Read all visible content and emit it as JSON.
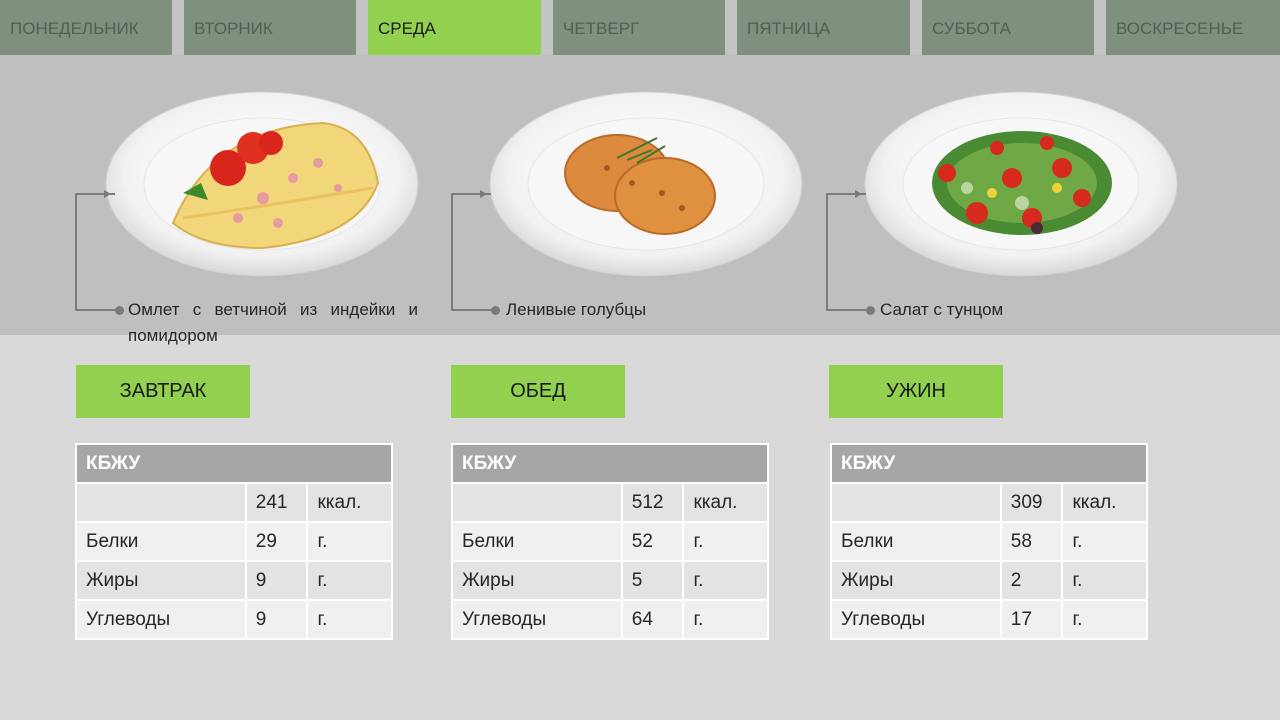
{
  "tabs": [
    {
      "label": "ПОНЕДЕЛЬНИК",
      "active": false
    },
    {
      "label": "ВТОРНИК",
      "active": false
    },
    {
      "label": "СРЕДА",
      "active": true
    },
    {
      "label": "ЧЕТВЕРГ",
      "active": false
    },
    {
      "label": "ПЯТНИЦА",
      "active": false
    },
    {
      "label": "СУББОТА",
      "active": false
    },
    {
      "label": "ВОСКРЕСЕНЬЕ",
      "active": false
    }
  ],
  "meals": [
    {
      "dish": "Омлет с ветчиной из индейки и",
      "dish_line2": "помидором",
      "label": "ЗАВТРАК",
      "table": {
        "header": "КБЖУ",
        "kcal": "241",
        "kcal_unit": "ккал.",
        "rows": [
          {
            "name": "Белки",
            "value": "29",
            "unit": "г."
          },
          {
            "name": "Жиры",
            "value": "9",
            "unit": "г."
          },
          {
            "name": "Углеводы",
            "value": "9",
            "unit": "г."
          }
        ]
      }
    },
    {
      "dish": "Ленивые голубцы",
      "dish_line2": "",
      "label": "ОБЕД",
      "table": {
        "header": "КБЖУ",
        "kcal": "512",
        "kcal_unit": "ккал.",
        "rows": [
          {
            "name": "Белки",
            "value": "52",
            "unit": "г."
          },
          {
            "name": "Жиры",
            "value": "5",
            "unit": "г."
          },
          {
            "name": "Углеводы",
            "value": "64",
            "unit": "г."
          }
        ]
      }
    },
    {
      "dish": "Салат с тунцом",
      "dish_line2": "",
      "label": "УЖИН",
      "table": {
        "header": "КБЖУ",
        "kcal": "309",
        "kcal_unit": "ккал.",
        "rows": [
          {
            "name": "Белки",
            "value": "58",
            "unit": "г."
          },
          {
            "name": "Жиры",
            "value": "2",
            "unit": "г."
          },
          {
            "name": "Углеводы",
            "value": "17",
            "unit": "г."
          }
        ]
      }
    }
  ]
}
